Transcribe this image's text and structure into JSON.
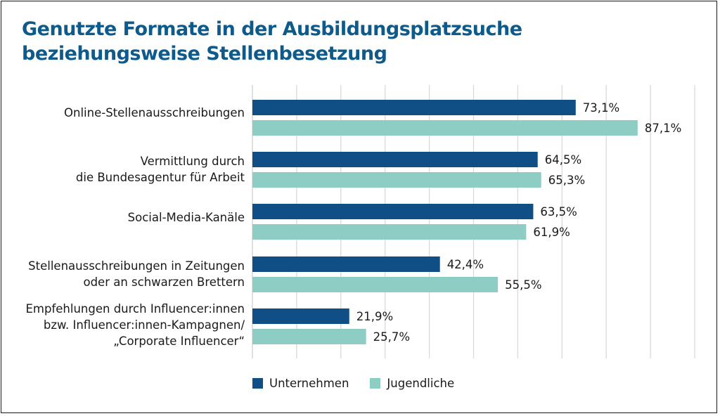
{
  "title_lines": [
    "Genutzte Formate in der Ausbildungsplatzsuche",
    "beziehungsweise Stellenbesetzung"
  ],
  "colors": {
    "title": "#0e5a8a",
    "unternehmen": "#0f4f86",
    "jugendliche": "#8ecdc3",
    "grid": "#d9d9d9"
  },
  "chart_data": {
    "type": "bar",
    "orientation": "horizontal",
    "categories": [
      "Online-Stellenausschreibungen",
      "Vermittlung durch \ndie Bundesagentur für Arbeit",
      "Social-Media-Kanäle",
      "Stellenausschreibungen in Zeitungen\noder an schwarzen Brettern",
      "Empfehlungen durch Influencer:innen\nbzw. Influencer:innen-Kampagnen/\n„Corporate Influencer“"
    ],
    "series": [
      {
        "name": "Unternehmen",
        "values": [
          73.1,
          64.5,
          63.5,
          42.4,
          21.9
        ],
        "labels": [
          "73,1%",
          "64,5%",
          "63,5%",
          "42,4%",
          "21,9%"
        ]
      },
      {
        "name": "Jugendliche",
        "values": [
          87.1,
          65.3,
          61.9,
          55.5,
          25.7
        ],
        "labels": [
          "87,1%",
          "65,3%",
          "61,9%",
          "55,5%",
          "25,7%"
        ]
      }
    ],
    "xlim": [
      0,
      100
    ],
    "grid": true,
    "legend": "bottom"
  }
}
